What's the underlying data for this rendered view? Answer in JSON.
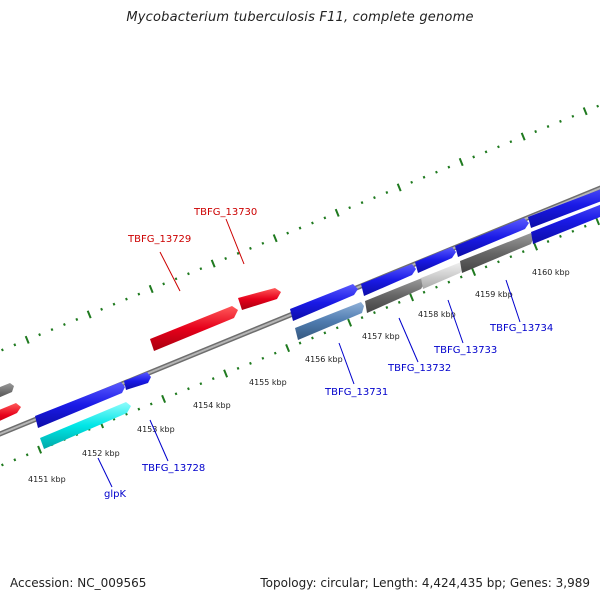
{
  "title": "Mycobacterium tuberculosis F11, complete genome",
  "footer": {
    "accession": "Accession: NC_009565",
    "summary": "Topology: circular; Length: 4,424,435 bp; Genes: 3,989"
  },
  "colors": {
    "forward_gene": "#e6001a",
    "reverse_gene": "#1a1ae6",
    "rna_gene": "#00e6e6",
    "backbone": "#8a8a8a",
    "tick": "#1f7a1f",
    "label_red": "#cc0000",
    "label_blue": "#0000cc"
  },
  "ticks": {
    "labels": [
      "4151 kbp",
      "4152 kbp",
      "4153 kbp",
      "4154 kbp",
      "4155 kbp",
      "4156 kbp",
      "4157 kbp",
      "4158 kbp",
      "4159 kbp",
      "4160 kbp"
    ]
  },
  "genes": {
    "top_labels": [
      "TBFG_13729",
      "TBFG_13730"
    ],
    "bottom_labels": [
      "glpK",
      "TBFG_13728",
      "TBFG_13731",
      "TBFG_13732",
      "TBFG_13733",
      "TBFG_13734"
    ]
  }
}
